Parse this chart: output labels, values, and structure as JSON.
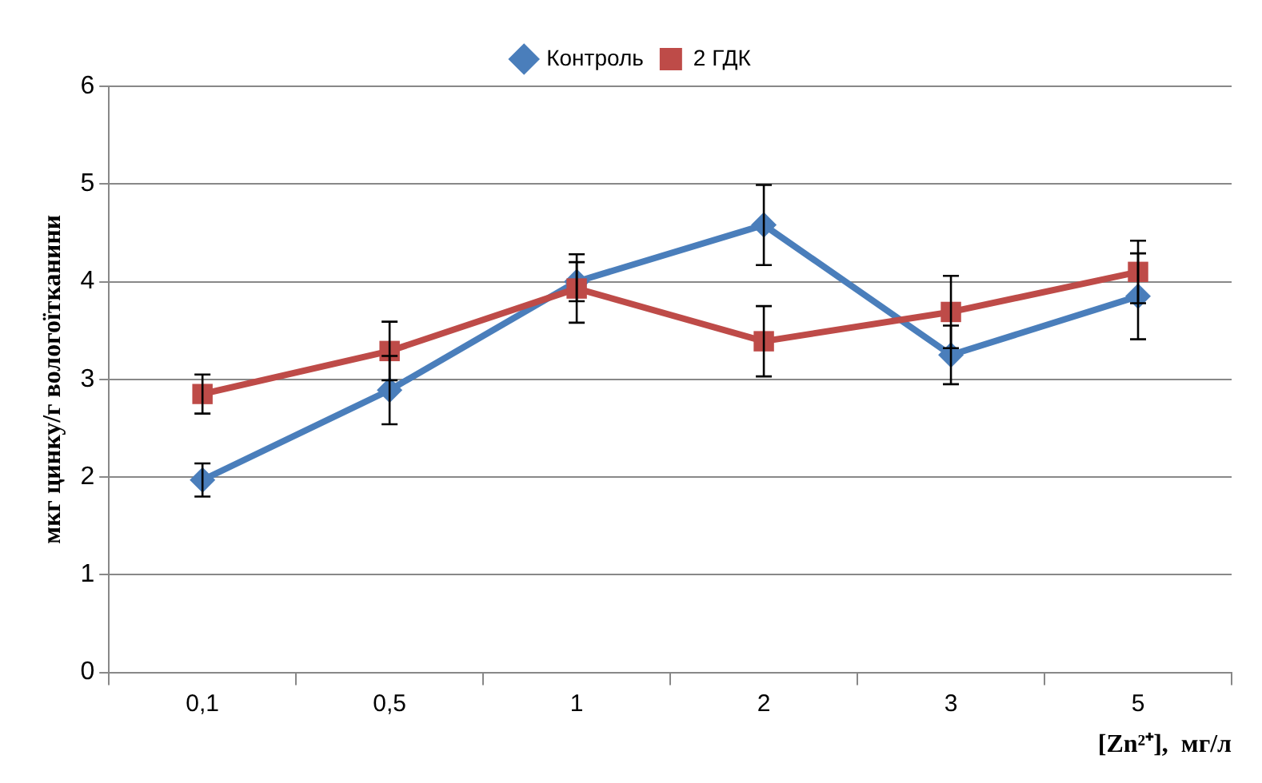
{
  "chart_data": {
    "type": "line",
    "xlabel": "[Zn²⁺],  мг/л",
    "ylabel": "мкг цинку/г вологоїтканини",
    "categories": [
      "0,1",
      "0,5",
      "1",
      "2",
      "3",
      "5"
    ],
    "series": [
      {
        "name": "Контроль",
        "color": "#4a7ebb",
        "marker": "diamond",
        "values": [
          1.97,
          2.89,
          4.0,
          4.58,
          3.25,
          3.85
        ],
        "errors": [
          0.17,
          0.35,
          0.2,
          0.41,
          0.3,
          0.44
        ]
      },
      {
        "name": "2 ГДК",
        "color": "#be4b48",
        "marker": "square",
        "values": [
          2.85,
          3.29,
          3.93,
          3.39,
          3.69,
          4.1
        ],
        "errors": [
          0.2,
          0.3,
          0.35,
          0.36,
          0.37,
          0.32
        ]
      }
    ],
    "ylim": [
      0,
      6
    ],
    "yticks": [
      0,
      1,
      2,
      3,
      4,
      5,
      6
    ],
    "grid": "y",
    "legend": "top"
  }
}
